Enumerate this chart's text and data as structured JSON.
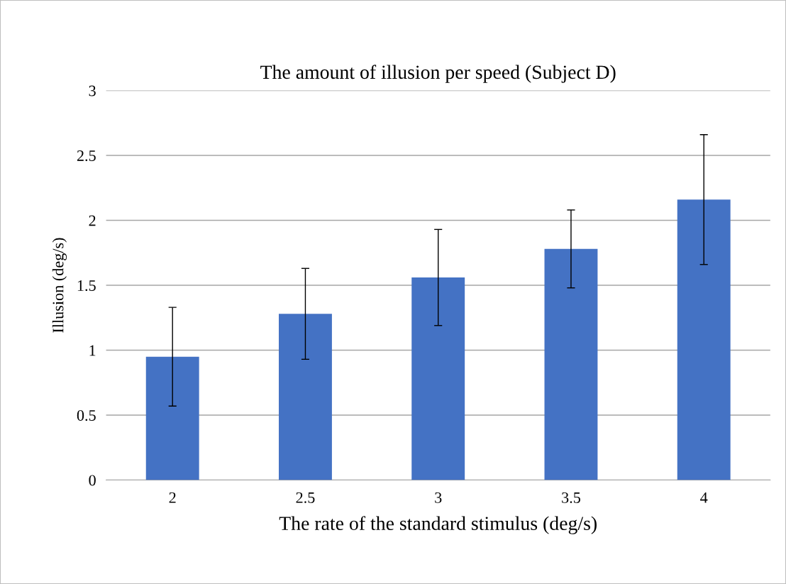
{
  "chart_data": {
    "type": "bar",
    "title": "The amount of illusion per speed (Subject D)",
    "xlabel": "The rate of the standard stimulus (deg/s)",
    "ylabel": "Illusion (deg/s)",
    "categories": [
      "2",
      "2.5",
      "3",
      "3.5",
      "4"
    ],
    "values": [
      0.95,
      1.28,
      1.56,
      1.78,
      2.16
    ],
    "errors": [
      0.38,
      0.35,
      0.37,
      0.3,
      0.5
    ],
    "color": "#4472c4",
    "ylim": [
      0,
      3
    ],
    "yticks": [
      0,
      0.5,
      1,
      1.5,
      2,
      2.5,
      3
    ],
    "grid": "y"
  }
}
